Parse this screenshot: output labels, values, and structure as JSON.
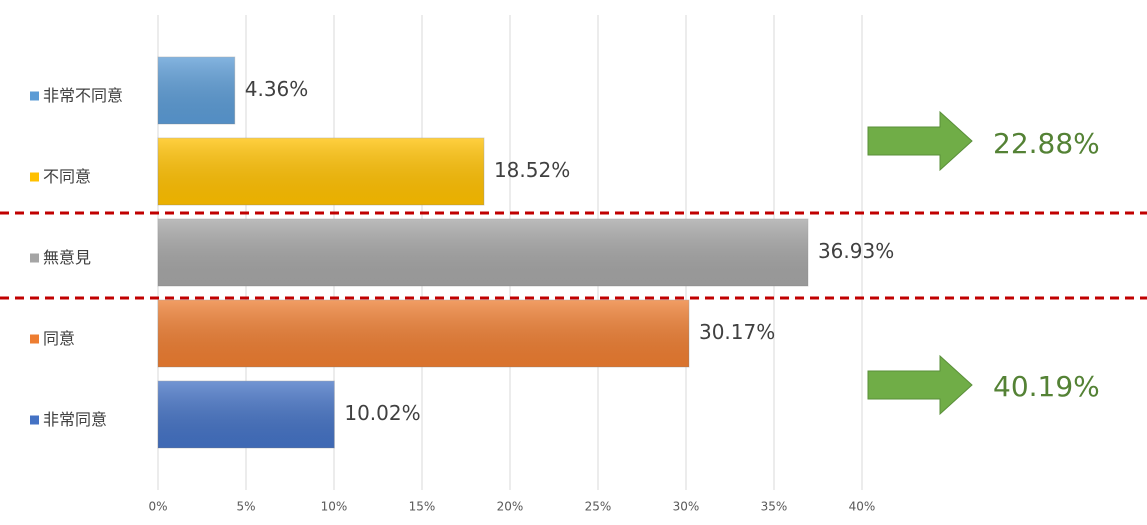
{
  "chart_data": {
    "type": "bar",
    "orientation": "horizontal",
    "categories": [
      "非常不同意",
      "不同意",
      "無意見",
      "同意",
      "非常同意"
    ],
    "values": [
      4.36,
      18.52,
      36.93,
      30.17,
      10.02
    ],
    "value_labels": [
      "4.36%",
      "18.52%",
      "36.93%",
      "30.17%",
      "10.02%"
    ],
    "colors": [
      "#5b9bd5",
      "#ffc000",
      "#a5a5a5",
      "#ed7d31",
      "#4472c4"
    ],
    "xlim": [
      0,
      40
    ],
    "xticks": [
      {
        "value": 0,
        "label": "0%"
      },
      {
        "value": 5,
        "label": "5%"
      },
      {
        "value": 10,
        "label": "10%"
      },
      {
        "value": 15,
        "label": "15%"
      },
      {
        "value": 20,
        "label": "20%"
      },
      {
        "value": 25,
        "label": "25%"
      },
      {
        "value": 30,
        "label": "30%"
      },
      {
        "value": 35,
        "label": "35%"
      },
      {
        "value": 40,
        "label": "40%"
      }
    ],
    "grid": true,
    "annotations": [
      "22.88%",
      "40.19%"
    ]
  }
}
